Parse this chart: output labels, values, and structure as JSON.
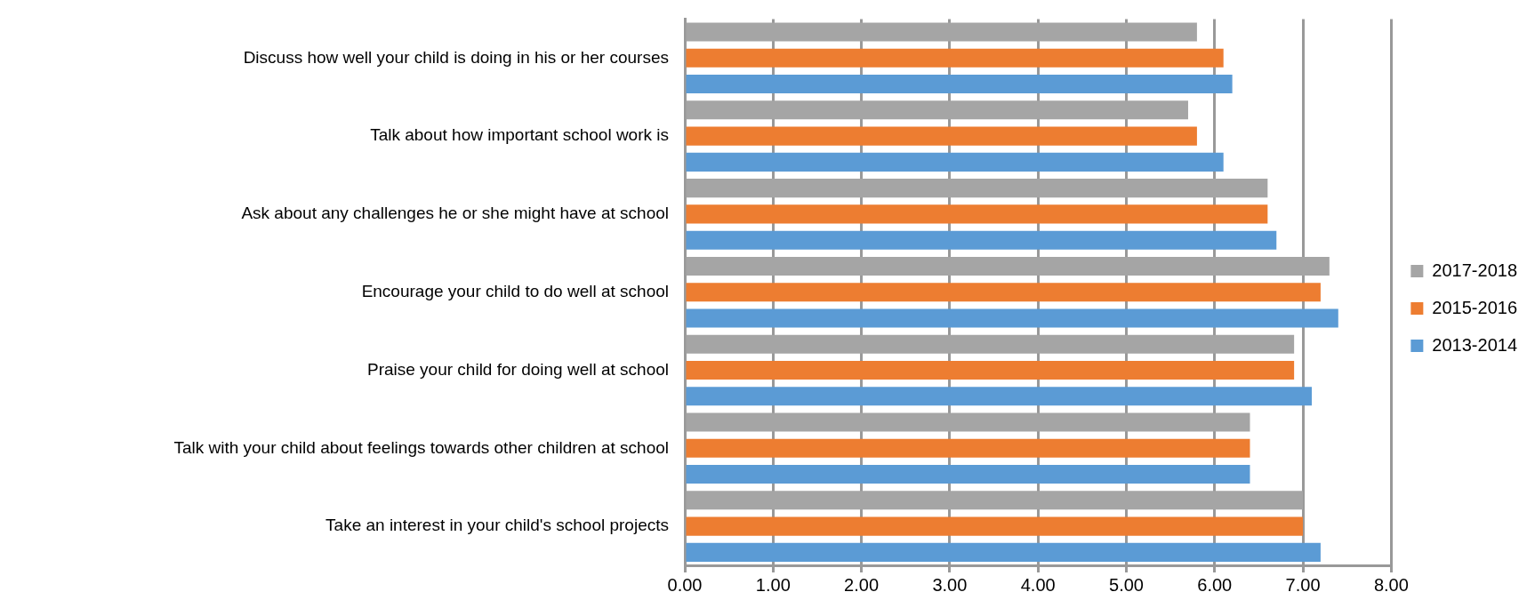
{
  "chart_data": {
    "type": "bar",
    "orientation": "horizontal",
    "categories": [
      "Discuss how well your child is doing in his or her courses",
      "Talk about how important school work is",
      "Ask about any challenges he or she might have at school",
      "Encourage your child to do well at school",
      "Praise your child for doing well at school",
      "Talk with your child about feelings towards other children at school",
      "Take an interest in your child's school projects"
    ],
    "series": [
      {
        "name": "2017-2018",
        "color": "#a5a5a5",
        "values": [
          5.8,
          5.7,
          6.6,
          7.3,
          6.9,
          6.4,
          7.0
        ]
      },
      {
        "name": "2015-2016",
        "color": "#ed7d31",
        "values": [
          6.1,
          5.8,
          6.6,
          7.2,
          6.9,
          6.4,
          7.0
        ]
      },
      {
        "name": "2013-2014",
        "color": "#5b9bd5",
        "values": [
          6.2,
          6.1,
          6.7,
          7.4,
          7.1,
          6.4,
          7.2
        ]
      }
    ],
    "xlim": [
      0,
      8
    ],
    "xticks": [
      {
        "value": 0,
        "label": "0.00"
      },
      {
        "value": 1,
        "label": "1.00"
      },
      {
        "value": 2,
        "label": "2.00"
      },
      {
        "value": 3,
        "label": "3.00"
      },
      {
        "value": 4,
        "label": "4.00"
      },
      {
        "value": 5,
        "label": "5.00"
      },
      {
        "value": 6,
        "label": "6.00"
      },
      {
        "value": 7,
        "label": "7.00"
      },
      {
        "value": 8,
        "label": "8.00"
      }
    ],
    "grid": "x",
    "legend": "right"
  }
}
